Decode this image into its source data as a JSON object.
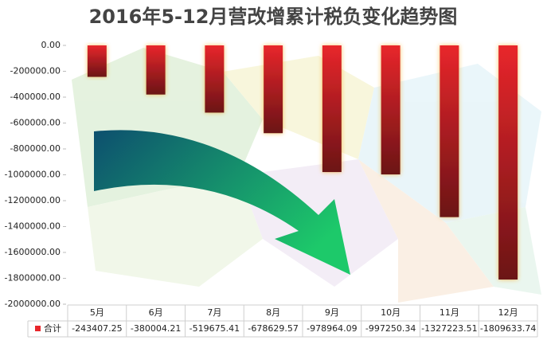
{
  "chart_data": {
    "type": "bar",
    "title": "2016年5-12月营改增累计税负变化趋势图",
    "categories": [
      "5月",
      "6月",
      "7月",
      "8月",
      "9月",
      "10月",
      "11月",
      "12月"
    ],
    "series": [
      {
        "name": "合计",
        "color": "#e8262b",
        "values": [
          -243407.25,
          -380004.21,
          -519675.41,
          -678629.57,
          -978964.09,
          -997250.34,
          -1327223.51,
          -1809633.74
        ]
      }
    ],
    "ylim": [
      -2000000,
      0
    ],
    "yticks": [
      {
        "value": 0,
        "label": "0.00"
      },
      {
        "value": -200000,
        "label": "-200000.00"
      },
      {
        "value": -400000,
        "label": "-400000.00"
      },
      {
        "value": -600000,
        "label": "-600000.00"
      },
      {
        "value": -800000,
        "label": "-800000.00"
      },
      {
        "value": -1000000,
        "label": "-1000000.00"
      },
      {
        "value": -1200000,
        "label": "-1200000.00"
      },
      {
        "value": -1400000,
        "label": "-1400000.00"
      },
      {
        "value": -1600000,
        "label": "-1600000.00"
      },
      {
        "value": -1800000,
        "label": "-1800000.00"
      },
      {
        "value": -2000000,
        "label": "-2000000.00"
      }
    ],
    "grid": false
  }
}
